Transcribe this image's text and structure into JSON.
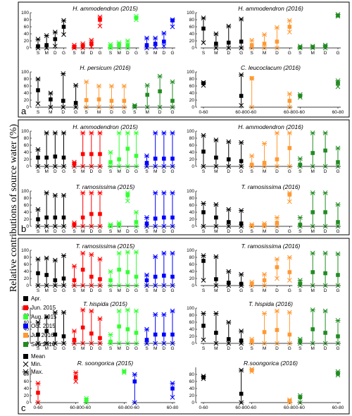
{
  "figure": {
    "ylabel": "Relative contributions of source water (%)",
    "section_labels": [
      "a",
      "b",
      "c"
    ],
    "legend": {
      "periods": [
        {
          "label": "Apr.",
          "color": "#000000"
        },
        {
          "label": "Jun. 2015",
          "color": "#ff0000"
        },
        {
          "label": "Aug. 2015",
          "color": "#33ff33"
        },
        {
          "label": "Oct. 2015",
          "color": "#0000ff"
        },
        {
          "label": "Jul. 2016",
          "color": "#ff9933"
        },
        {
          "label": "Sep.2016",
          "color": "#228b22"
        }
      ],
      "stats": [
        {
          "label": "Mean",
          "icon": "square-marker-icon"
        },
        {
          "label": "Min.",
          "icon": "x-marker-icon"
        },
        {
          "label": "Max.",
          "icon": "asterisk-marker-icon"
        }
      ]
    }
  },
  "chart_data": [
    {
      "type": "range-dot",
      "section": "a",
      "title": "H. ammodendron (2015)",
      "categories": [
        "S",
        "M",
        "D",
        "G"
      ],
      "yticks": [
        0,
        20,
        40,
        60,
        80,
        100
      ],
      "series": [
        {
          "color": "#000000",
          "mean": [
            5,
            8,
            25,
            60
          ],
          "min": [
            0,
            0,
            5,
            38
          ],
          "max": [
            25,
            35,
            45,
            78
          ]
        },
        {
          "color": "#ff0000",
          "mean": [
            3,
            5,
            12,
            80
          ],
          "min": [
            0,
            0,
            3,
            62
          ],
          "max": [
            8,
            12,
            22,
            88
          ]
        },
        {
          "color": "#33ff33",
          "mean": [
            3,
            8,
            8,
            85
          ],
          "min": [
            0,
            0,
            0,
            80
          ],
          "max": [
            10,
            15,
            20,
            90
          ]
        },
        {
          "color": "#0000ff",
          "mean": [
            8,
            12,
            18,
            78
          ],
          "min": [
            0,
            2,
            5,
            60
          ],
          "max": [
            28,
            28,
            42,
            80
          ]
        }
      ]
    },
    {
      "type": "range-dot",
      "section": "a",
      "title": "H. ammodendron (2016)",
      "categories": [
        "S",
        "M",
        "D",
        "G"
      ],
      "yticks": [
        0,
        20,
        40,
        60,
        80,
        100
      ],
      "series": [
        {
          "color": "#000000",
          "mean": [
            55,
            12,
            15,
            18
          ],
          "min": [
            15,
            0,
            0,
            0
          ],
          "max": [
            85,
            40,
            62,
            82
          ]
        },
        {
          "color": "#ff9933",
          "mean": [
            8,
            12,
            18,
            60
          ],
          "min": [
            0,
            0,
            0,
            45
          ],
          "max": [
            22,
            38,
            58,
            78
          ]
        },
        {
          "color": "#228b22",
          "mean": [
            2,
            3,
            5,
            92
          ],
          "min": [
            0,
            0,
            0,
            90
          ],
          "max": [
            5,
            5,
            8,
            95
          ]
        }
      ]
    },
    {
      "type": "range-dot",
      "section": "a",
      "title": "H. persicum (2016)",
      "categories": [
        "S",
        "M",
        "D",
        "G"
      ],
      "yticks": [
        0,
        20,
        40,
        60,
        80,
        100
      ],
      "series": [
        {
          "color": "#000000",
          "mean": [
            48,
            22,
            18,
            12
          ],
          "min": [
            10,
            0,
            0,
            0
          ],
          "max": [
            80,
            40,
            95,
            62
          ]
        },
        {
          "color": "#ff9933",
          "mean": [
            20,
            22,
            18,
            18
          ],
          "min": [
            0,
            0,
            0,
            0
          ],
          "max": [
            72,
            60,
            60,
            60
          ]
        },
        {
          "color": "#228b22",
          "mean": [
            3,
            35,
            45,
            18
          ],
          "min": [
            0,
            0,
            0,
            0
          ],
          "max": [
            5,
            62,
            88,
            72
          ]
        }
      ]
    },
    {
      "type": "range-dot",
      "section": "a",
      "title": "C. leucoclacum (2016)",
      "categories": [
        "0-60",
        "60-80"
      ],
      "yticks": [
        0,
        20,
        40,
        60,
        80,
        100
      ],
      "series": [
        {
          "color": "#000000",
          "mean": [
            68,
            32
          ],
          "min": [
            62,
            5
          ],
          "max": [
            70,
            92
          ]
        },
        {
          "color": "#ff9933",
          "mean": [
            82,
            18
          ],
          "min": [
            0,
            0
          ],
          "max": [
            82,
            38
          ]
        },
        {
          "color": "#228b22",
          "mean": [
            32,
            68
          ],
          "min": [
            28,
            58
          ],
          "max": [
            36,
            75
          ]
        }
      ]
    },
    {
      "type": "range-dot",
      "section": "b",
      "title": "H. ammodendron (2015)",
      "categories": [
        "S",
        "M",
        "D",
        "G"
      ],
      "yticks": [
        0,
        20,
        40,
        60,
        80,
        100
      ],
      "series": [
        {
          "color": "#000000",
          "mean": [
            25,
            25,
            28,
            25
          ],
          "min": [
            0,
            0,
            0,
            0
          ],
          "max": [
            48,
            95,
            95,
            95
          ]
        },
        {
          "color": "#ff0000",
          "mean": [
            8,
            35,
            35,
            35
          ],
          "min": [
            0,
            0,
            0,
            0
          ],
          "max": [
            12,
            95,
            95,
            95
          ]
        },
        {
          "color": "#33ff33",
          "mean": [
            12,
            20,
            50,
            30
          ],
          "min": [
            0,
            0,
            0,
            0
          ],
          "max": [
            40,
            95,
            95,
            95
          ]
        },
        {
          "color": "#0000ff",
          "mean": [
            10,
            22,
            22,
            22
          ],
          "min": [
            0,
            0,
            0,
            0
          ],
          "max": [
            30,
            95,
            95,
            95
          ]
        }
      ]
    },
    {
      "type": "range-dot",
      "section": "b",
      "title": "H. ammodendron (2016)",
      "categories": [
        "S",
        "M",
        "D",
        "G"
      ],
      "yticks": [
        0,
        20,
        40,
        60,
        80,
        100
      ],
      "series": [
        {
          "color": "#000000",
          "mean": [
            42,
            25,
            20,
            15
          ],
          "min": [
            0,
            0,
            0,
            0
          ],
          "max": [
            88,
            75,
            70,
            68
          ]
        },
        {
          "color": "#ff9933",
          "mean": [
            5,
            10,
            20,
            52
          ],
          "min": [
            0,
            0,
            0,
            0
          ],
          "max": [
            30,
            65,
            95,
            95
          ]
        },
        {
          "color": "#228b22",
          "mean": [
            5,
            38,
            45,
            12
          ],
          "min": [
            0,
            0,
            0,
            0
          ],
          "max": [
            22,
            95,
            95,
            52
          ]
        }
      ]
    },
    {
      "type": "range-dot",
      "section": "b",
      "title": "T. ramosissima (2015)",
      "categories": [
        "S",
        "M",
        "D",
        "G"
      ],
      "yticks": [
        0,
        20,
        40,
        60,
        80,
        100
      ],
      "series": [
        {
          "color": "#000000",
          "mean": [
            20,
            25,
            25,
            25
          ],
          "min": [
            0,
            0,
            0,
            0
          ],
          "max": [
            48,
            95,
            88,
            88
          ]
        },
        {
          "color": "#ff0000",
          "mean": [
            5,
            25,
            35,
            35
          ],
          "min": [
            0,
            0,
            0,
            0
          ],
          "max": [
            10,
            95,
            95,
            95
          ]
        },
        {
          "color": "#33ff33",
          "mean": [
            2,
            5,
            88,
            12
          ],
          "min": [
            0,
            0,
            72,
            0
          ],
          "max": [
            5,
            10,
            95,
            40
          ]
        },
        {
          "color": "#0000ff",
          "mean": [
            8,
            22,
            25,
            25
          ],
          "min": [
            0,
            0,
            0,
            0
          ],
          "max": [
            25,
            95,
            95,
            95
          ]
        }
      ]
    },
    {
      "type": "range-dot",
      "section": "b",
      "title": "T. ramosissima (2016)",
      "categories": [
        "S",
        "M",
        "D",
        "G"
      ],
      "yticks": [
        0,
        20,
        40,
        60,
        80,
        100
      ],
      "series": [
        {
          "color": "#000000",
          "mean": [
            40,
            25,
            12,
            8
          ],
          "min": [
            0,
            0,
            0,
            0
          ],
          "max": [
            65,
            62,
            48,
            45
          ]
        },
        {
          "color": "#ff9933",
          "mean": [
            2,
            3,
            10,
            90
          ],
          "min": [
            0,
            0,
            0,
            70
          ],
          "max": [
            5,
            8,
            25,
            95
          ]
        },
        {
          "color": "#228b22",
          "mean": [
            5,
            40,
            40,
            12
          ],
          "min": [
            0,
            0,
            0,
            0
          ],
          "max": [
            25,
            95,
            95,
            62
          ]
        }
      ]
    },
    {
      "type": "range-dot",
      "section": "c",
      "title": "T. ramosissima (2015)",
      "categories": [
        "S",
        "M",
        "D",
        "G"
      ],
      "yticks": [
        0,
        20,
        40,
        60,
        80,
        100
      ],
      "series": [
        {
          "color": "#000000",
          "mean": [
            35,
            30,
            15,
            20
          ],
          "min": [
            0,
            0,
            0,
            0
          ],
          "max": [
            75,
            78,
            72,
            85
          ]
        },
        {
          "color": "#ff0000",
          "mean": [
            15,
            45,
            25,
            18
          ],
          "min": [
            0,
            0,
            0,
            0
          ],
          "max": [
            55,
            92,
            88,
            75
          ]
        },
        {
          "color": "#33ff33",
          "mean": [
            15,
            45,
            38,
            25
          ],
          "min": [
            0,
            0,
            0,
            0
          ],
          "max": [
            40,
            92,
            95,
            95
          ]
        },
        {
          "color": "#0000ff",
          "mean": [
            15,
            25,
            28,
            25
          ],
          "min": [
            0,
            0,
            0,
            0
          ],
          "max": [
            30,
            82,
            92,
            92
          ]
        }
      ]
    },
    {
      "type": "range-dot",
      "section": "c",
      "title": "T. ramosissima (2016)",
      "categories": [
        "S",
        "M",
        "D",
        "G"
      ],
      "yticks": [
        0,
        20,
        40,
        60,
        80,
        100
      ],
      "series": [
        {
          "color": "#000000",
          "mean": [
            70,
            18,
            8,
            5
          ],
          "min": [
            15,
            0,
            0,
            0
          ],
          "max": [
            85,
            82,
            40,
            32
          ]
        },
        {
          "color": "#ff9933",
          "mean": [
            5,
            15,
            52,
            38
          ],
          "min": [
            0,
            0,
            20,
            15
          ],
          "max": [
            10,
            32,
            75,
            80
          ]
        },
        {
          "color": "#228b22",
          "mean": [
            5,
            38,
            35,
            30
          ],
          "min": [
            0,
            0,
            0,
            0
          ],
          "max": [
            15,
            92,
            92,
            90
          ]
        }
      ]
    },
    {
      "type": "range-dot",
      "section": "c",
      "title": "T. hispida (2015)",
      "categories": [
        "S",
        "M",
        "D",
        "G"
      ],
      "yticks": [
        0,
        20,
        40,
        60,
        80,
        100
      ],
      "series": [
        {
          "color": "#000000",
          "mean": [
            25,
            35,
            25,
            20
          ],
          "min": [
            0,
            0,
            0,
            0
          ],
          "max": [
            60,
            75,
            88,
            88
          ]
        },
        {
          "color": "#ff0000",
          "mean": [
            10,
            45,
            28,
            15
          ],
          "min": [
            0,
            0,
            0,
            0
          ],
          "max": [
            35,
            95,
            92,
            70
          ]
        },
        {
          "color": "#33ff33",
          "mean": [
            5,
            48,
            40,
            30
          ],
          "min": [
            0,
            0,
            0,
            0
          ],
          "max": [
            25,
            92,
            95,
            92
          ]
        },
        {
          "color": "#0000ff",
          "mean": [
            10,
            25,
            25,
            25
          ],
          "min": [
            0,
            0,
            0,
            0
          ],
          "max": [
            40,
            82,
            82,
            92
          ]
        }
      ]
    },
    {
      "type": "range-dot",
      "section": "c",
      "title": "T. hispida (2016)",
      "categories": [
        "S",
        "M",
        "D",
        "G"
      ],
      "yticks": [
        0,
        20,
        40,
        60,
        80,
        100
      ],
      "series": [
        {
          "color": "#000000",
          "mean": [
            50,
            30,
            12,
            8
          ],
          "min": [
            10,
            0,
            0,
            0
          ],
          "max": [
            85,
            85,
            60,
            35
          ]
        },
        {
          "color": "#ff9933",
          "mean": [
            5,
            32,
            38,
            25
          ],
          "min": [
            0,
            0,
            0,
            0
          ],
          "max": [
            12,
            85,
            92,
            88
          ]
        },
        {
          "color": "#228b22",
          "mean": [
            5,
            40,
            30,
            20
          ],
          "min": [
            0,
            0,
            0,
            0
          ],
          "max": [
            12,
            95,
            92,
            65
          ]
        }
      ]
    },
    {
      "type": "range-dot",
      "section": "c",
      "title": "R. soongorica (2015)",
      "categories": [
        "0-60",
        "60-80"
      ],
      "yticks": [
        0,
        20,
        40,
        60,
        80
      ],
      "series": [
        {
          "color": "#ff0000",
          "mean": [
            28,
            72
          ],
          "min": [
            0,
            60
          ],
          "max": [
            55,
            85
          ]
        },
        {
          "color": "#33ff33",
          "mean": [
            8,
            88
          ],
          "min": [
            0,
            85
          ],
          "max": [
            12,
            90
          ]
        },
        {
          "color": "#0000ff",
          "mean": [
            60,
            40
          ],
          "min": [
            0,
            15
          ],
          "max": [
            80,
            55
          ]
        }
      ]
    },
    {
      "type": "range-dot",
      "section": "c",
      "title": "R.soongorica (2016)",
      "categories": [
        "0-60",
        "60-80"
      ],
      "yticks": [
        0,
        20,
        40,
        60,
        80
      ],
      "series": [
        {
          "color": "#000000",
          "mean": [
            72,
            25
          ],
          "min": [
            68,
            0
          ],
          "max": [
            75,
            92
          ]
        },
        {
          "color": "#ff9933",
          "mean": [
            92,
            5
          ],
          "min": [
            88,
            0
          ],
          "max": [
            95,
            8
          ]
        },
        {
          "color": "#228b22",
          "mean": [
            15,
            82
          ],
          "min": [
            0,
            78
          ],
          "max": [
            20,
            88
          ]
        }
      ]
    }
  ]
}
